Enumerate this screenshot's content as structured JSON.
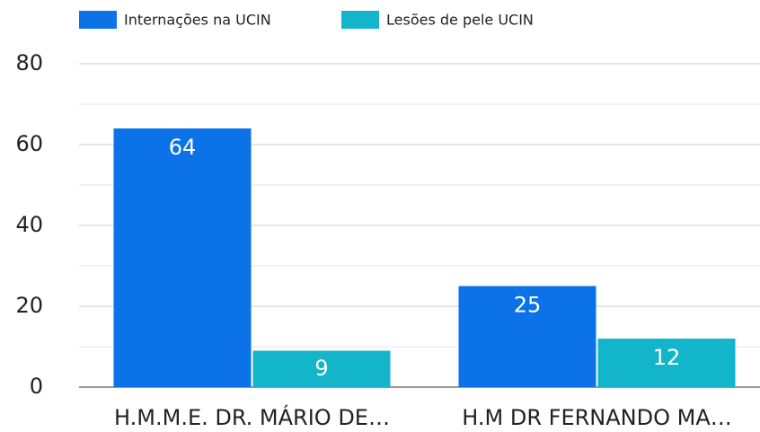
{
  "chart_data": {
    "type": "bar",
    "categories": [
      "H.M.M.E. DR. MÁRIO DE…",
      "H.M DR FERNANDO MA…"
    ],
    "series": [
      {
        "name": "Internações na UCIN",
        "color": "#0b72e7",
        "values": [
          64,
          25
        ]
      },
      {
        "name": "Lesões de pele UCIN",
        "color": "#13b5ca",
        "values": [
          9,
          12
        ]
      }
    ],
    "ylim": [
      0,
      80
    ],
    "yticks": [
      0,
      20,
      40,
      60,
      80
    ],
    "yminorticks": [
      10,
      30,
      50,
      70
    ],
    "grid": true,
    "legend": "top"
  }
}
